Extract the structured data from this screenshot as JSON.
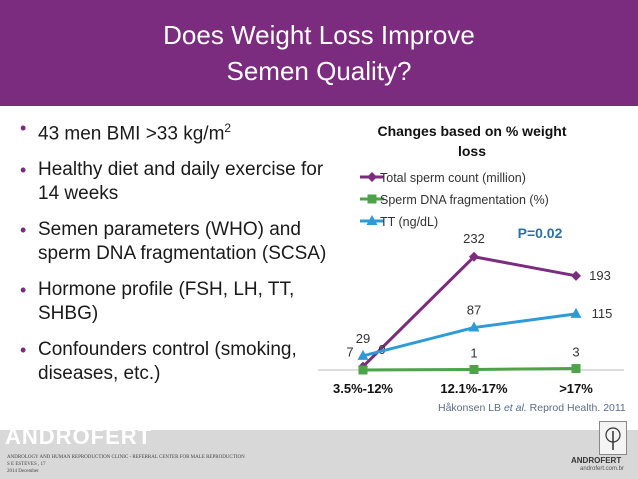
{
  "slide": {
    "title_line1": "Does Weight Loss Improve",
    "title_line2": "Semen Quality?",
    "bullets": [
      {
        "text": "43 men BMI >33 kg/m",
        "sup": "2"
      },
      {
        "text": "Healthy diet and daily exercise for 14 weeks"
      },
      {
        "text": "Semen parameters (WHO) and sperm DNA fragmentation (SCSA)"
      },
      {
        "text": "Hormone profile (FSH, LH, TT, SHBG)"
      },
      {
        "text": "Confounders control (smoking, diseases, etc.)"
      }
    ],
    "citation_pre": "Håkonsen LB ",
    "citation_etal": "et al.",
    "citation_post": " Reprod Health. 2011"
  },
  "footer": {
    "brand": "ANDROFERT",
    "line1": "ANDROLOGY AND HUMAN REPRODUCTION CLINIC - REFERRAL CENTER FOR MALE REPRODUCTION",
    "line2": "S E ESTEVES , 17",
    "line3": "2014 December",
    "logo_name": "ANDROFERT",
    "logo_url": "androfert.com.br"
  },
  "colors": {
    "header_bg": "#7b2c7f",
    "bullet_marker": "#7b2c7f",
    "series_total": "#7b2c7f",
    "series_dna": "#4ca34a",
    "series_tt": "#2e9bd6"
  },
  "chart_data": {
    "type": "line",
    "title": "Changes based on % weight loss",
    "categories": [
      "3.5%-12%",
      "12.1%-17%",
      ">17%"
    ],
    "series": [
      {
        "name": "Total sperm count (million)",
        "values": [
          7,
          232,
          193
        ],
        "color": "#7b2c7f",
        "marker": "diamond"
      },
      {
        "name": "Sperm DNA fragmentation (%)",
        "values": [
          0,
          1,
          3
        ],
        "color": "#4ca34a",
        "marker": "square"
      },
      {
        "name": "TT (ng/dL)",
        "values": [
          29,
          87,
          115
        ],
        "color": "#2e9bd6",
        "marker": "triangle"
      }
    ],
    "annotation": "P=0.02",
    "legend_position": "top-left",
    "grid": false,
    "ylim": [
      0,
      250
    ]
  }
}
